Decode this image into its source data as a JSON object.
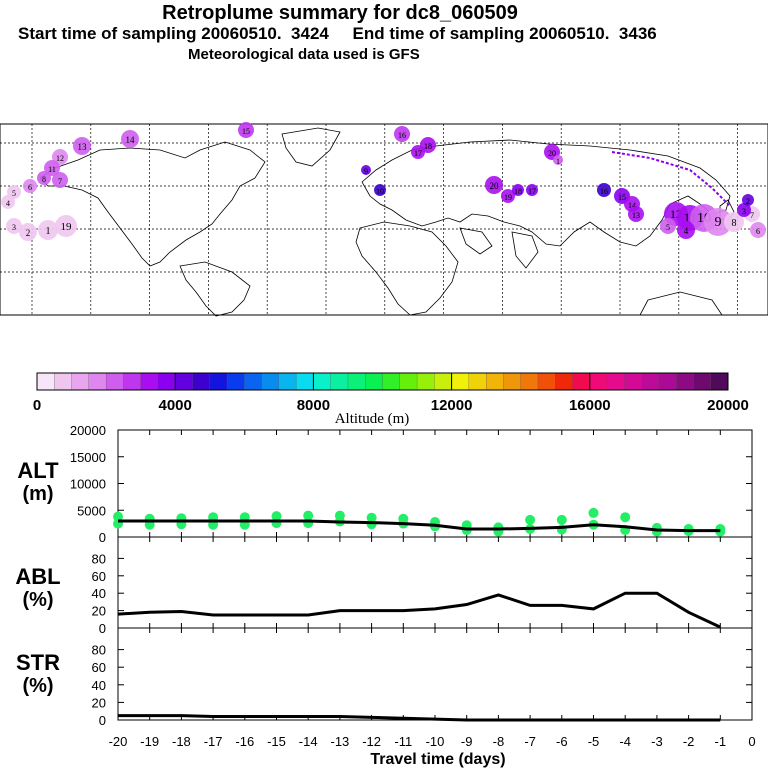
{
  "header": {
    "title": "Retroplume summary for dc8_060509",
    "subtitle": "Start time of sampling 20060510.  3424     End time of sampling 20060510.  3436",
    "subtitle2": "Meteorological data used is GFS"
  },
  "map": {
    "labels": [
      "13",
      "14",
      "15",
      "16",
      "18",
      "17",
      "12",
      "11",
      "9",
      "10",
      "8",
      "7",
      "6",
      "5",
      "4",
      "3",
      "2",
      "1",
      "19",
      "20",
      "20",
      "19",
      "18",
      "17",
      "16",
      "15",
      "14",
      "13",
      "12",
      "11",
      "10",
      "9",
      "8",
      "7",
      "6",
      "5",
      "4",
      "3",
      "2",
      "1"
    ]
  },
  "colorbar": {
    "ticks": [
      "0",
      "4000",
      "8000",
      "12000",
      "16000",
      "20000"
    ],
    "label": "Altitude (m)",
    "colors": [
      "#f7e6f7",
      "#efc6ef",
      "#e7a6ef",
      "#df86ef",
      "#cf5eef",
      "#bf36ef",
      "#a80eef",
      "#8a00ef",
      "#6400df",
      "#3c00cf",
      "#1414df",
      "#0a3cef",
      "#0a64ef",
      "#0a8cef",
      "#0ab4ef",
      "#0adcef",
      "#0af0c8",
      "#0af0a0",
      "#0af078",
      "#0af050",
      "#32f028",
      "#64f00a",
      "#96f00a",
      "#c8f00a",
      "#f0f00a",
      "#f0d20a",
      "#f0b40a",
      "#f0960a",
      "#f0780a",
      "#f0500a",
      "#f0280a",
      "#f00a50",
      "#f00a78",
      "#e60a8c",
      "#d20a96",
      "#be0a9b",
      "#aa0a96",
      "#8c0a82",
      "#6e0a6e",
      "#500a5a"
    ]
  },
  "panel_labels": {
    "alt": [
      "ALT",
      "(m)"
    ],
    "abl": [
      "ABL",
      "(%)"
    ],
    "str": [
      "STR",
      "(%)"
    ]
  },
  "x_axis": {
    "label": "Travel time (days)",
    "ticks": [
      "-20",
      "-19",
      "-18",
      "-17",
      "-16",
      "-15",
      "-14",
      "-13",
      "-12",
      "-11",
      "-10",
      "-9",
      "-8",
      "-7",
      "-6",
      "-5",
      "-4",
      "-3",
      "-2",
      "-1",
      "0"
    ]
  },
  "chart_data": [
    {
      "type": "line",
      "panel": "ALT",
      "ylabel": "ALT (m)",
      "ylim": [
        0,
        20000
      ],
      "yticks": [
        "20000",
        "15000",
        "10000",
        "5000",
        "0"
      ],
      "x": [
        -20,
        -19,
        -18,
        -17,
        -16,
        -15,
        -14,
        -13,
        -12,
        -11,
        -10,
        -9,
        -8,
        -7,
        -6,
        -5,
        -4,
        -3,
        -2,
        -1
      ],
      "values": [
        3000,
        3000,
        3000,
        3000,
        3000,
        3000,
        3000,
        2800,
        2700,
        2500,
        2200,
        1500,
        1500,
        1600,
        1800,
        2300,
        1900,
        1300,
        1200,
        1200
      ],
      "points": [
        [
          -20,
          3800
        ],
        [
          -20,
          2500
        ],
        [
          -19,
          3400
        ],
        [
          -19,
          2300
        ],
        [
          -18,
          3500
        ],
        [
          -18,
          2400
        ],
        [
          -17,
          3700
        ],
        [
          -17,
          2300
        ],
        [
          -16,
          3700
        ],
        [
          -16,
          2300
        ],
        [
          -15,
          3900
        ],
        [
          -15,
          2600
        ],
        [
          -14,
          4000
        ],
        [
          -14,
          2600
        ],
        [
          -13,
          4000
        ],
        [
          -13,
          2900
        ],
        [
          -12,
          3600
        ],
        [
          -12,
          2400
        ],
        [
          -11,
          3400
        ],
        [
          -11,
          2500
        ],
        [
          -10,
          2800
        ],
        [
          -10,
          2000
        ],
        [
          -9,
          2200
        ],
        [
          -9,
          1300
        ],
        [
          -8,
          1800
        ],
        [
          -8,
          1000
        ],
        [
          -7,
          3200
        ],
        [
          -7,
          1500
        ],
        [
          -6,
          3200
        ],
        [
          -6,
          1400
        ],
        [
          -5,
          4500
        ],
        [
          -5,
          2300
        ],
        [
          -4,
          3700
        ],
        [
          -4,
          1300
        ],
        [
          -3,
          1700
        ],
        [
          -3,
          1000
        ],
        [
          -2,
          1500
        ],
        [
          -2,
          1100
        ],
        [
          -1,
          1500
        ],
        [
          -1,
          1000
        ]
      ]
    },
    {
      "type": "line",
      "panel": "ABL",
      "ylabel": "ABL (%)",
      "ylim": [
        0,
        100
      ],
      "yticks": [
        "80",
        "60",
        "40",
        "20",
        "0"
      ],
      "x": [
        -20,
        -19,
        -18,
        -17,
        -16,
        -15,
        -14,
        -13,
        -12,
        -11,
        -10,
        -9,
        -8,
        -7,
        -6,
        -5,
        -4,
        -3,
        -2,
        -1
      ],
      "values": [
        16,
        18,
        19,
        15,
        15,
        15,
        15,
        20,
        20,
        20,
        22,
        27,
        38,
        26,
        26,
        22,
        40,
        40,
        18,
        1
      ]
    },
    {
      "type": "line",
      "panel": "STR",
      "ylabel": "STR (%)",
      "ylim": [
        0,
        100
      ],
      "yticks": [
        "80",
        "60",
        "40",
        "20",
        "0"
      ],
      "x": [
        -20,
        -19,
        -18,
        -17,
        -16,
        -15,
        -14,
        -13,
        -12,
        -11,
        -10,
        -9,
        -8,
        -7,
        -6,
        -5,
        -4,
        -3,
        -2,
        -1
      ],
      "values": [
        5,
        5,
        5,
        4,
        4,
        4,
        4,
        4,
        3,
        2,
        1,
        0,
        0,
        0,
        0,
        0,
        0,
        0,
        0,
        0
      ]
    }
  ]
}
